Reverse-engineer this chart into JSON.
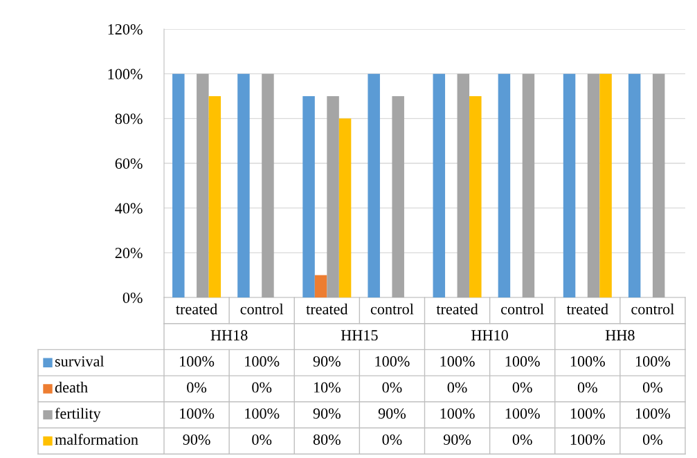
{
  "chart_data": {
    "type": "bar",
    "categories": [
      "treated",
      "control",
      "treated",
      "control",
      "treated",
      "control",
      "treated",
      "control"
    ],
    "annotations": [
      "HH18",
      "HH15",
      "HH10",
      "HH8"
    ],
    "series": [
      {
        "name": "survival",
        "color": "#5b9bd5",
        "values": [
          100,
          100,
          90,
          100,
          100,
          100,
          100,
          100
        ],
        "value_labels": [
          "100%",
          "100%",
          "90%",
          "100%",
          "100%",
          "100%",
          "100%",
          "100%"
        ]
      },
      {
        "name": "death",
        "color": "#ed7d31",
        "values": [
          0,
          0,
          10,
          0,
          0,
          0,
          0,
          0
        ],
        "value_labels": [
          "0%",
          "0%",
          "10%",
          "0%",
          "0%",
          "0%",
          "0%",
          "0%"
        ]
      },
      {
        "name": "fertility",
        "color": "#a5a5a5",
        "values": [
          100,
          100,
          90,
          90,
          100,
          100,
          100,
          100
        ],
        "value_labels": [
          "100%",
          "100%",
          "90%",
          "90%",
          "100%",
          "100%",
          "100%",
          "100%"
        ]
      },
      {
        "name": "malformation",
        "color": "#ffc000",
        "values": [
          90,
          0,
          80,
          0,
          90,
          0,
          100,
          0
        ],
        "value_labels": [
          "90%",
          "0%",
          "80%",
          "0%",
          "90%",
          "0%",
          "100%",
          "0%"
        ]
      }
    ],
    "ylim": [
      0,
      120
    ],
    "yticks": [
      {
        "value": 0,
        "label": "0%"
      },
      {
        "value": 20,
        "label": "20%"
      },
      {
        "value": 40,
        "label": "40%"
      },
      {
        "value": 60,
        "label": "60%"
      },
      {
        "value": 80,
        "label": "80%"
      },
      {
        "value": 100,
        "label": "100%"
      },
      {
        "value": 120,
        "label": "120%"
      }
    ],
    "grid": "y",
    "legend": "left"
  }
}
